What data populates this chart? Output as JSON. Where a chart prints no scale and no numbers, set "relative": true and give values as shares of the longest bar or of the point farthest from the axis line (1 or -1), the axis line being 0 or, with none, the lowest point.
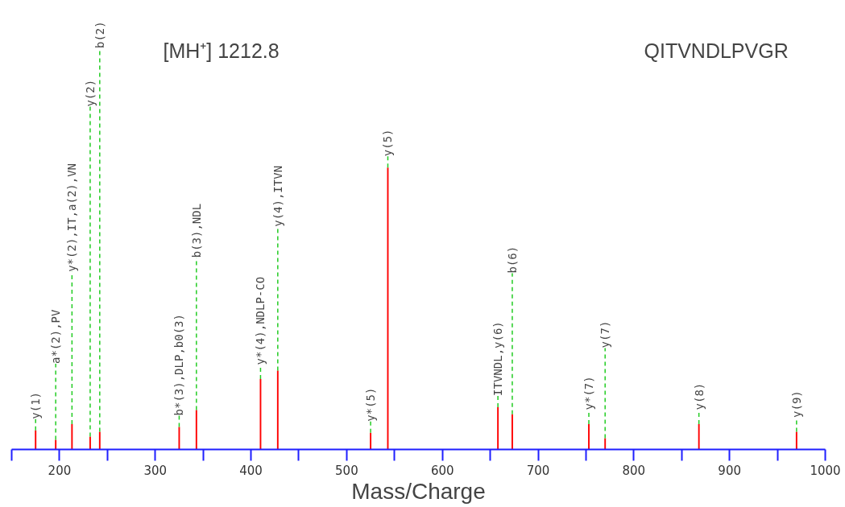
{
  "chart_data": {
    "type": "bar",
    "relative": true,
    "xlabel": "Mass/Charge",
    "x": [
      175,
      196,
      213,
      232,
      242,
      325,
      343,
      410,
      428,
      525,
      543,
      658,
      673,
      753,
      770,
      868,
      970
    ],
    "series": [
      {
        "color": "#ff0000",
        "values": [
          0.068,
          0.034,
          0.09,
          0.046,
          0.063,
          0.08,
          0.14,
          0.25,
          0.28,
          0.059,
          1,
          0.15,
          0.125,
          0.09,
          0.04,
          0.09,
          0.063
        ]
      }
    ],
    "xlim": [
      150,
      1000
    ],
    "xticks": [
      {
        "value": 150,
        "label": null
      },
      200,
      {
        "value": 250,
        "label": null
      },
      300,
      {
        "value": 350,
        "label": null
      },
      400,
      {
        "value": 450,
        "label": null
      },
      500,
      {
        "value": 550,
        "label": null
      },
      600,
      {
        "value": 650,
        "label": null
      },
      700,
      {
        "value": 750,
        "label": null
      },
      800,
      {
        "value": 850,
        "label": null
      },
      900,
      {
        "value": 950,
        "label": null
      },
      1000
    ],
    "tick_labels": "x",
    "grid": false,
    "annotations": [
      "[MH⁺] 1212.8",
      "QITVNDLPVGR",
      {
        "text": "y(1)",
        "x": 175,
        "y": 0.068
      },
      {
        "text": "a*(2),PV",
        "x": 196,
        "y": 0.034
      },
      {
        "text": "y*(2),IT,a(2),VN",
        "x": 213,
        "y": 0.09
      },
      {
        "text": "y(2)",
        "x": 232,
        "y": 0.046
      },
      {
        "text": "b(2)",
        "x": 242,
        "y": 0.063
      },
      {
        "text": "b*(3),DLP,b0(3)",
        "x": 325,
        "y": 0.08
      },
      {
        "text": "b(3),NDL",
        "x": 343,
        "y": 0.14
      },
      {
        "text": "y*(4),NDLP-CO",
        "x": 410,
        "y": 0.25
      },
      {
        "text": "y(4),ITVN",
        "x": 428,
        "y": 0.28
      },
      {
        "text": "y*(5)",
        "x": 525,
        "y": 0.059
      },
      {
        "text": "y(5)",
        "x": 543,
        "y": 1
      },
      {
        "text": "ITVNDL,y(6)",
        "x": 658,
        "y": 0.15
      },
      {
        "text": "b(6)",
        "x": 673,
        "y": 0.125
      },
      {
        "text": "y*(7)",
        "x": 753,
        "y": 0.09
      },
      {
        "text": "y(7)",
        "x": 770,
        "y": 0.04
      },
      {
        "text": "y(8)",
        "x": 868,
        "y": 0.09
      },
      {
        "text": "y(9)",
        "x": 970,
        "y": 0.063
      }
    ]
  }
}
